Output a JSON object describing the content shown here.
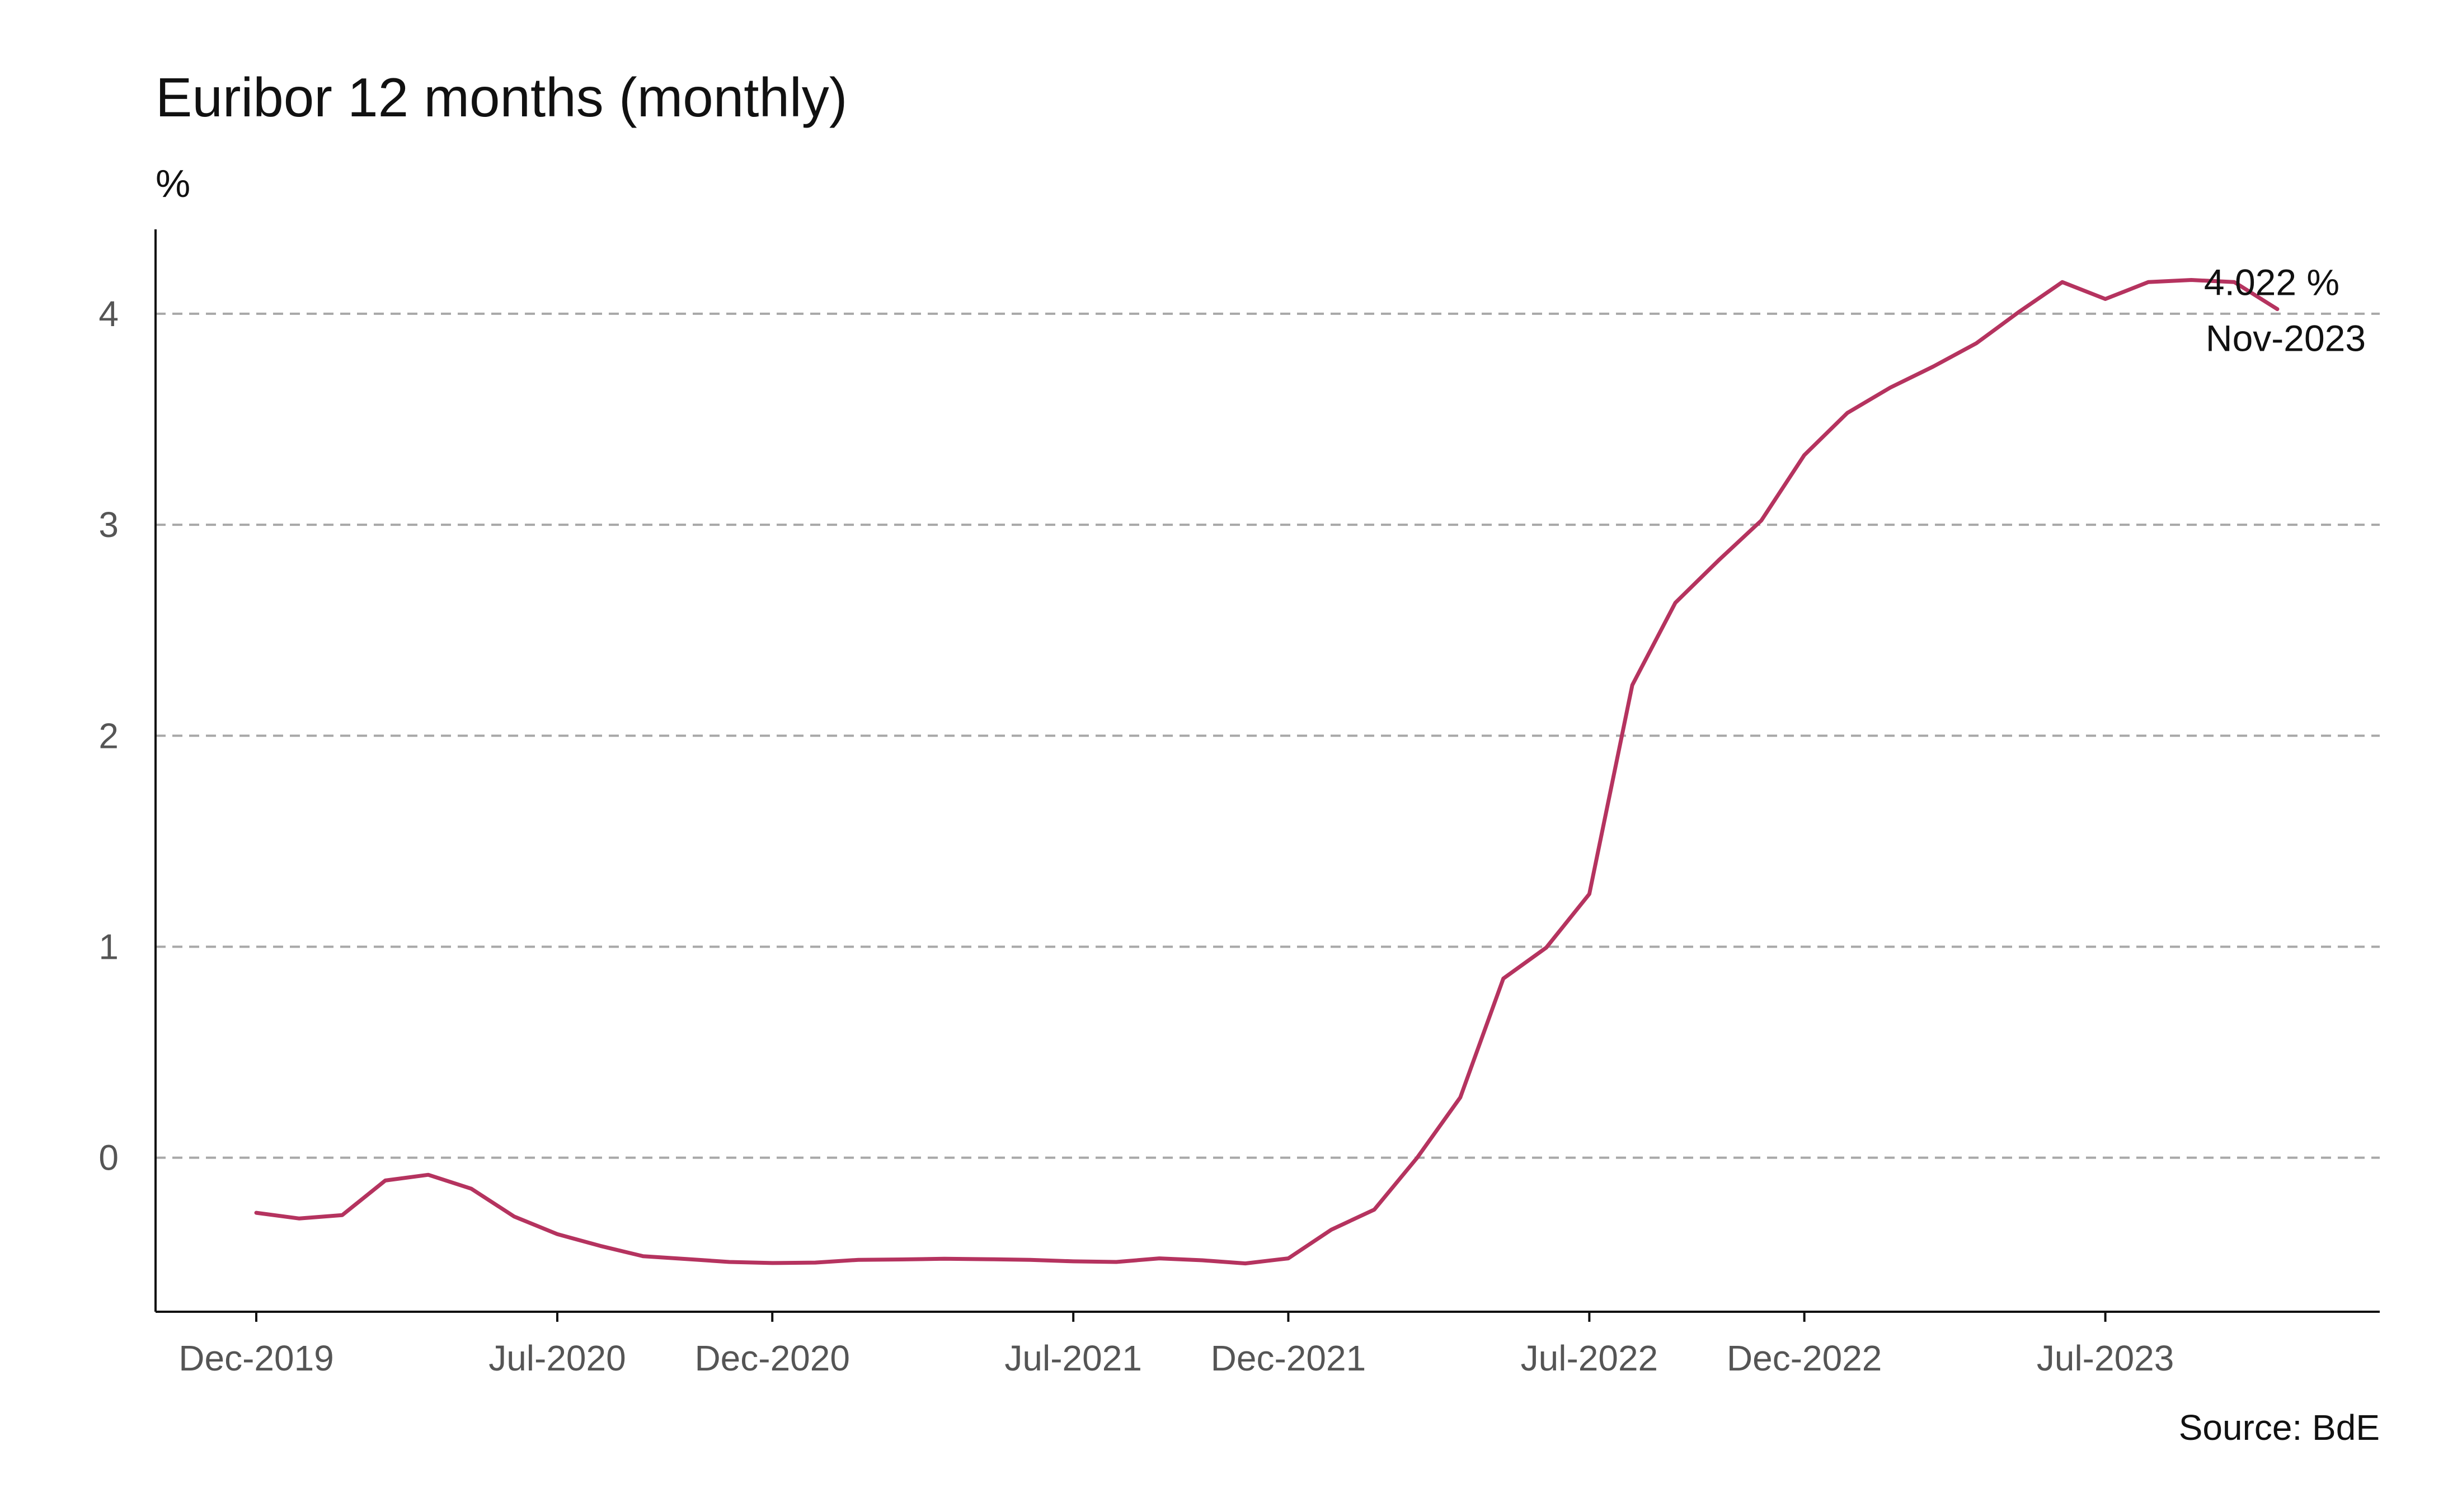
{
  "chart_data": {
    "type": "line",
    "title": "Euribor 12 months (monthly)",
    "ylabel": "%",
    "xlabel": "",
    "source": "Source: BdE",
    "line_color": "#b5335f",
    "grid": true,
    "ylim": [
      -0.73,
      4.4
    ],
    "yticks": [
      0,
      1,
      2,
      3,
      4
    ],
    "x_tick_labels": [
      "Dec-2019",
      "Jul-2020",
      "Dec-2020",
      "Jul-2021",
      "Dec-2021",
      "Jul-2022",
      "Dec-2022",
      "Jul-2023"
    ],
    "x": [
      "Dec-2019",
      "Jan-2020",
      "Feb-2020",
      "Mar-2020",
      "Apr-2020",
      "May-2020",
      "Jun-2020",
      "Jul-2020",
      "Aug-2020",
      "Sep-2020",
      "Oct-2020",
      "Nov-2020",
      "Dec-2020",
      "Jan-2021",
      "Feb-2021",
      "Mar-2021",
      "Apr-2021",
      "May-2021",
      "Jun-2021",
      "Jul-2021",
      "Aug-2021",
      "Sep-2021",
      "Oct-2021",
      "Nov-2021",
      "Dec-2021",
      "Jan-2022",
      "Feb-2022",
      "Mar-2022",
      "Apr-2022",
      "May-2022",
      "Jun-2022",
      "Jul-2022",
      "Aug-2022",
      "Sep-2022",
      "Oct-2022",
      "Nov-2022",
      "Dec-2022",
      "Jan-2023",
      "Feb-2023",
      "Mar-2023",
      "Apr-2023",
      "May-2023",
      "Jun-2023",
      "Jul-2023",
      "Aug-2023",
      "Sep-2023",
      "Oct-2023",
      "Nov-2023"
    ],
    "series": [
      {
        "values": [
          -0.261,
          -0.288,
          -0.272,
          -0.108,
          -0.081,
          -0.147,
          -0.279,
          -0.362,
          -0.418,
          -0.467,
          -0.48,
          -0.494,
          -0.499,
          -0.497,
          -0.484,
          -0.482,
          -0.479,
          -0.481,
          -0.484,
          -0.491,
          -0.494,
          -0.477,
          -0.486,
          -0.501,
          -0.477,
          -0.341,
          -0.246,
          0.001,
          0.286,
          0.849,
          0.996,
          1.25,
          2.24,
          2.63,
          2.83,
          3.02,
          3.33,
          3.53,
          3.65,
          3.75,
          3.86,
          4.01,
          4.15,
          4.07,
          4.15,
          4.16,
          4.15,
          4.022
        ]
      }
    ],
    "annotation": {
      "value_label": "4.022 %",
      "date_label": "Nov-2023"
    }
  }
}
